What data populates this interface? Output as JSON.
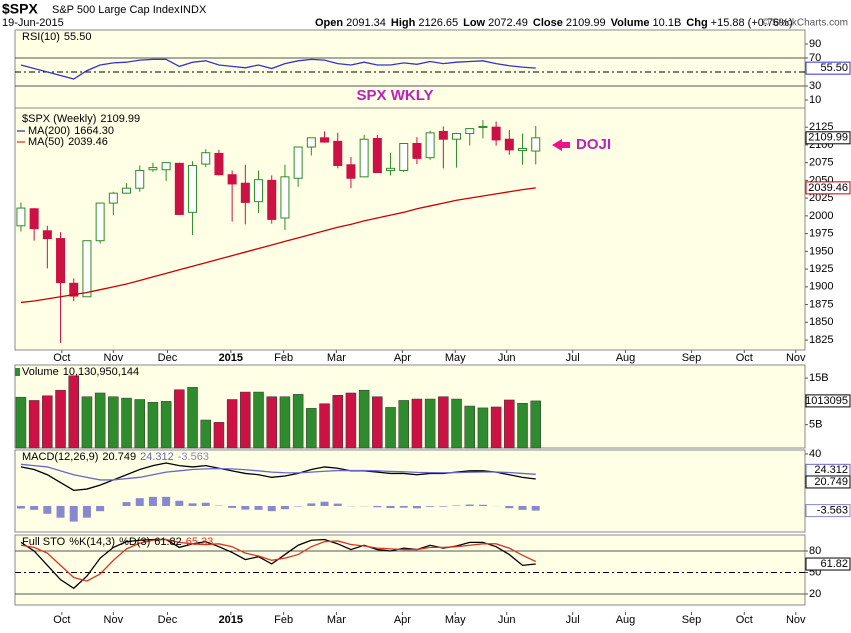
{
  "header": {
    "symbol": "$SPX",
    "name": "S&P 500 Large Cap Index",
    "exchange": "INDX",
    "date": "19-Jun-2015",
    "copyright": "© StockCharts.com",
    "quote_labels": [
      "Open",
      "High",
      "Low",
      "Close",
      "Volume",
      "Chg"
    ],
    "volume": "10.1B",
    "change": "+15.88 (+0.76%)"
  },
  "chart_data": [
    {
      "type": "candlestick",
      "name": "$SPX (Weekly)",
      "annotations": [
        "SPX WKLY",
        "DOJI"
      ],
      "open": [
        1986,
        2010,
        1979,
        1968,
        1905,
        1886,
        1965,
        2018,
        2032,
        2039,
        2065,
        2065,
        2074,
        2005,
        2073,
        2088,
        2058,
        2046,
        2020,
        2050,
        1997,
        2053,
        2097,
        2110,
        2105,
        2072,
        2055,
        2109,
        2064,
        2064,
        2102,
        2082,
        2119,
        2108,
        2116,
        2125,
        2125,
        2108,
        2092,
        2091.34
      ],
      "high": [
        2019,
        2011,
        1986,
        1977,
        1912,
        1965,
        2018,
        2034,
        2046,
        2071,
        2075,
        2076,
        2075,
        2077,
        2094,
        2093,
        2064,
        2072,
        2064,
        2057,
        2072,
        2097,
        2110,
        2119,
        2117,
        2083,
        2114,
        2114,
        2089,
        2102,
        2111,
        2120,
        2126,
        2117,
        2123,
        2135,
        2133,
        2121,
        2116,
        2126.65
      ],
      "low": [
        1978,
        1965,
        1926,
        1821,
        1880,
        1886,
        1961,
        2001,
        2031,
        2034,
        2062,
        2049,
        2002,
        1973,
        2069,
        2057,
        1992,
        1988,
        2004,
        1989,
        1980,
        2041,
        2085,
        2103,
        2067,
        2039,
        2055,
        2061,
        2057,
        2062,
        2073,
        2079,
        2067,
        2068,
        2099,
        2109,
        2099,
        2086,
        2072,
        2072.49
      ],
      "close": [
        2011,
        1982,
        1968,
        1906,
        1887,
        1965,
        2018,
        2032,
        2039,
        2064,
        2068,
        2075,
        2002,
        2071,
        2089,
        2058,
        2045,
        2019,
        2051,
        1995,
        2055,
        2097,
        2110,
        2104,
        2071,
        2053,
        2108,
        2061,
        2067,
        2102,
        2081,
        2117,
        2108,
        2116,
        2123,
        2126,
        2107,
        2093,
        2095,
        2109.99
      ],
      "up_color": "#2e8b2e",
      "down_color": "#cc1144",
      "series": [
        {
          "name": "MA(200)",
          "last_label": "1664.30",
          "color": "#000080"
        },
        {
          "name": "MA(50)",
          "color": "#cc0000",
          "values": [
            1878,
            1880,
            1883,
            1886,
            1889,
            1892,
            1896,
            1900,
            1904,
            1909,
            1914,
            1919,
            1924,
            1929,
            1934,
            1939,
            1944,
            1949,
            1954,
            1959,
            1964,
            1969,
            1974,
            1979,
            1984,
            1988,
            1993,
            1997,
            2001,
            2005,
            2010,
            2014,
            2018,
            2022,
            2025,
            2028,
            2031,
            2034,
            2037,
            2039.46
          ]
        }
      ],
      "xlim": [
        -0.45,
        59.4
      ],
      "xticks": [
        {
          "value": 3.1,
          "label": "Oct"
        },
        {
          "value": 7.0,
          "label": "Nov"
        },
        {
          "value": 11.1,
          "label": "Dec"
        },
        {
          "value": 15.9,
          "label": "2015"
        },
        {
          "value": 19.9,
          "label": "Feb"
        },
        {
          "value": 23.9,
          "label": "Mar"
        },
        {
          "value": 28.9,
          "label": "Apr"
        },
        {
          "value": 32.9,
          "label": "May"
        },
        {
          "value": 36.8,
          "label": "Jun"
        },
        {
          "value": 41.8,
          "label": "Jul"
        },
        {
          "value": 45.8,
          "label": "Aug"
        },
        {
          "value": 50.8,
          "label": "Sep"
        },
        {
          "value": 54.8,
          "label": "Oct"
        },
        {
          "value": 58.7,
          "label": "Nov"
        }
      ],
      "ylim": [
        1811,
        2152
      ],
      "yticks": [
        1825,
        1850,
        1875,
        1900,
        1925,
        1950,
        1975,
        2000,
        2025,
        2050,
        2075,
        2100,
        2125
      ]
    },
    {
      "type": "line",
      "ylim": [
        -1.4,
        110
      ],
      "yticks": [
        90,
        70,
        30,
        10
      ],
      "hlines": [
        70,
        50,
        30
      ],
      "series": [
        {
          "name": "RSI(10)",
          "last_label": "55.50",
          "color": "#3333cc",
          "values": [
            60,
            55,
            50,
            45,
            40,
            52,
            60,
            63,
            64,
            67,
            68,
            68,
            58,
            64,
            66,
            60,
            58,
            56,
            60,
            55,
            62,
            66,
            68,
            67,
            62,
            60,
            64,
            60,
            60,
            63,
            61,
            65,
            62,
            64,
            65,
            66,
            62,
            59,
            57,
            55.5
          ]
        }
      ]
    },
    {
      "type": "bar",
      "name": "Volume",
      "last_label": "10,130,950,144",
      "box_label": "1013095",
      "values": [
        10.9,
        10.2,
        11.2,
        12.4,
        15.5,
        11,
        11.8,
        11,
        10.7,
        10.4,
        9.8,
        10,
        12.5,
        13,
        6,
        5.5,
        10.4,
        12,
        12,
        11,
        11,
        11.5,
        8.5,
        9.5,
        11.3,
        11.8,
        12.4,
        11,
        8.7,
        10.2,
        10.5,
        10.5,
        11,
        10.5,
        9,
        8.6,
        8.8,
        10.3,
        9.6,
        10.1
      ],
      "ylim": [
        0,
        17.8
      ],
      "yticks": [
        {
          "value": 15,
          "label": "15B"
        },
        {
          "value": 5,
          "label": "5B"
        }
      ]
    },
    {
      "type": "combo",
      "name": "MACD(12,26,9)",
      "ylim": [
        -20,
        43
      ],
      "yticks": [
        40
      ],
      "series": [
        {
          "type": "line",
          "color": "#000000",
          "values": [
            30,
            28,
            24,
            18,
            12,
            13,
            16,
            20,
            24,
            28,
            31,
            33,
            31,
            30,
            31,
            29,
            27,
            25,
            24,
            22,
            23,
            25,
            28,
            30,
            29,
            27,
            27,
            26,
            25,
            25,
            24,
            25,
            25,
            26,
            27,
            27,
            26,
            24,
            22,
            20.749
          ]
        },
        {
          "type": "line",
          "color": "#6666cc",
          "values": [
            32,
            31,
            30,
            27,
            24,
            22,
            20,
            20,
            21,
            22,
            24,
            26,
            27,
            28,
            28.5,
            28.7,
            28.5,
            27.8,
            27,
            26,
            25.5,
            25.4,
            26,
            26.7,
            27.2,
            27.2,
            27.2,
            27,
            26.6,
            26.3,
            25.8,
            25.6,
            25.5,
            25.6,
            25.9,
            26.1,
            26.1,
            25.7,
            25,
            24.312
          ]
        },
        {
          "type": "bar",
          "color": "#8888cc",
          "values": [
            -2,
            -3,
            -6,
            -9,
            -12,
            -9,
            -4,
            0,
            3,
            6,
            7,
            7,
            4,
            2,
            2.5,
            0.3,
            -1.5,
            -2.8,
            -3,
            -4,
            -2.5,
            -0.4,
            2,
            3.3,
            1.8,
            -0.2,
            -0.2,
            -1,
            -1.6,
            -1.3,
            -1.8,
            -0.6,
            -0.5,
            0.4,
            1.1,
            0.9,
            -0.1,
            -1.7,
            -3,
            -3.563
          ]
        }
      ]
    },
    {
      "type": "line",
      "name": "Full STO",
      "ylim": [
        4.7,
        102.3
      ],
      "yticks": [
        80,
        50,
        20
      ],
      "hlines": [
        80,
        50,
        20
      ],
      "series": [
        {
          "name": "%K(14,3)",
          "color": "#000000",
          "values": [
            92,
            80,
            60,
            40,
            28,
            45,
            70,
            85,
            93,
            95,
            96,
            96,
            85,
            90,
            93,
            86,
            78,
            68,
            72,
            62,
            75,
            88,
            95,
            96,
            90,
            82,
            88,
            82,
            80,
            84,
            82,
            88,
            84,
            87,
            92,
            92,
            86,
            75,
            60,
            61.82
          ]
        },
        {
          "name": "%D(3)",
          "color": "#dd3322",
          "values": [
            88,
            85,
            77,
            60,
            43,
            38,
            48,
            67,
            83,
            91,
            95,
            96,
            92,
            90,
            89,
            90,
            86,
            77,
            73,
            67,
            70,
            75,
            86,
            93,
            94,
            89,
            87,
            84,
            83,
            82,
            82,
            85,
            85,
            86,
            88,
            90,
            90,
            84,
            74,
            65.33
          ]
        }
      ]
    }
  ]
}
